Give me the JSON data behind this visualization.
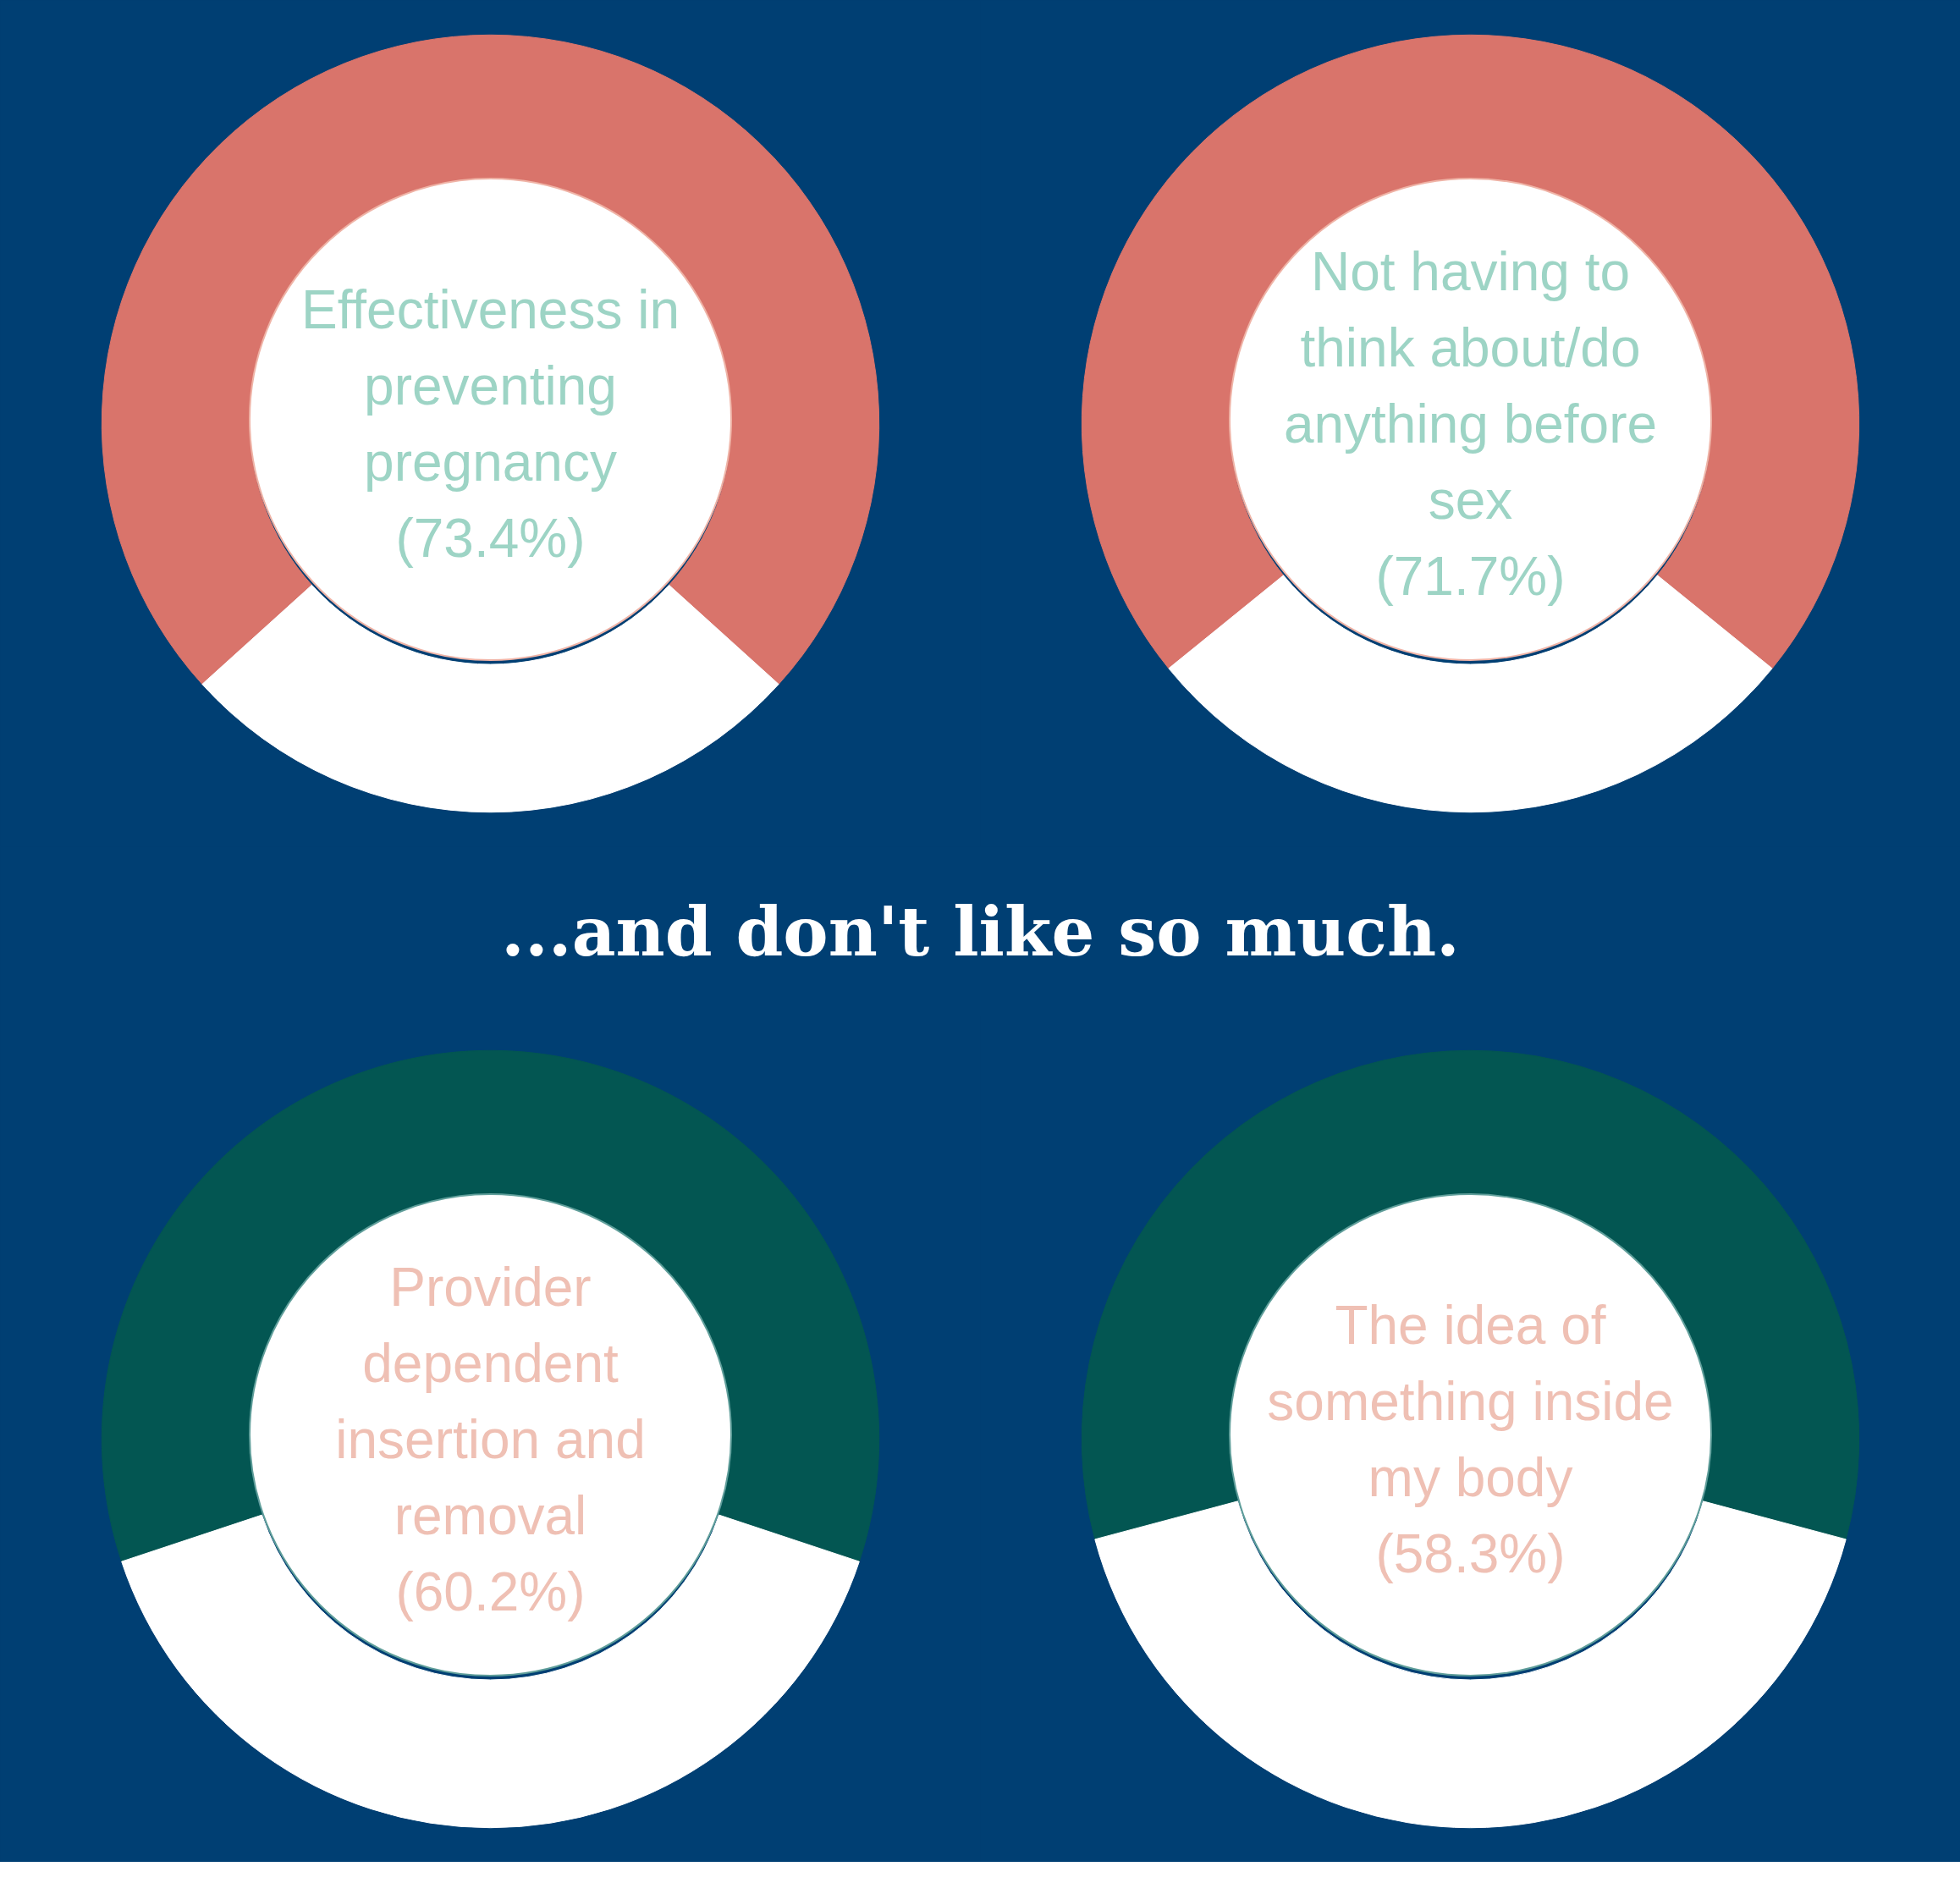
{
  "chart_data": [
    {
      "type": "donut",
      "categories": [
        "Effectiveness in preventing pregnancy",
        null
      ],
      "values": [
        73.4,
        26.6
      ],
      "colors": [
        "#d9746b",
        "#ffffff"
      ],
      "value_labels": [
        "(73.4%)",
        null
      ]
    },
    {
      "type": "donut",
      "categories": [
        "Not having to think about/do anything before sex",
        null
      ],
      "values": [
        71.7,
        28.3
      ],
      "colors": [
        "#d9746b",
        "#ffffff"
      ],
      "value_labels": [
        "(71.7%)",
        null
      ]
    },
    {
      "type": "donut",
      "title": "...and don't like so much.",
      "categories": [
        "Provider dependent insertion and removal",
        null
      ],
      "values": [
        60.2,
        39.8
      ],
      "colors": [
        "#035652",
        "#ffffff"
      ],
      "value_labels": [
        "(60.2%)",
        null
      ]
    },
    {
      "type": "donut",
      "categories": [
        "The idea of something inside my body",
        null
      ],
      "values": [
        58.3,
        41.7
      ],
      "colors": [
        "#035652",
        "#ffffff"
      ],
      "value_labels": [
        "(58.3%)",
        null
      ]
    }
  ]
}
